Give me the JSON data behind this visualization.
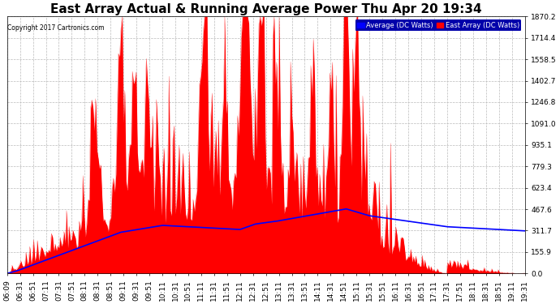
{
  "title": "East Array Actual & Running Average Power Thu Apr 20 19:34",
  "copyright": "Copyright 2017 Cartronics.com",
  "legend_labels": [
    "Average (DC Watts)",
    "East Array (DC Watts)"
  ],
  "legend_colors": [
    "#0000ff",
    "#ff0000"
  ],
  "yticks": [
    0.0,
    155.9,
    311.7,
    467.6,
    623.4,
    779.3,
    935.1,
    1091.0,
    1246.8,
    1402.7,
    1558.5,
    1714.4,
    1870.2
  ],
  "ymax": 1870.2,
  "ymin": 0.0,
  "bg_color": "#ffffff",
  "plot_bg_color": "#ffffff",
  "grid_color": "#bbbbbb",
  "bar_color": "#ff0000",
  "avg_color": "#0000ff",
  "title_fontsize": 11,
  "tick_label_fontsize": 6.5,
  "x_labels": [
    "06:09",
    "06:31",
    "06:51",
    "07:11",
    "07:31",
    "07:51",
    "08:11",
    "08:31",
    "08:51",
    "09:11",
    "09:31",
    "09:51",
    "10:11",
    "10:31",
    "10:51",
    "11:11",
    "11:31",
    "11:51",
    "12:11",
    "12:31",
    "12:51",
    "13:11",
    "13:31",
    "13:51",
    "14:11",
    "14:31",
    "14:51",
    "15:11",
    "15:31",
    "15:51",
    "16:11",
    "16:31",
    "16:51",
    "17:11",
    "17:31",
    "17:51",
    "18:11",
    "18:31",
    "18:51",
    "19:11",
    "19:31"
  ]
}
